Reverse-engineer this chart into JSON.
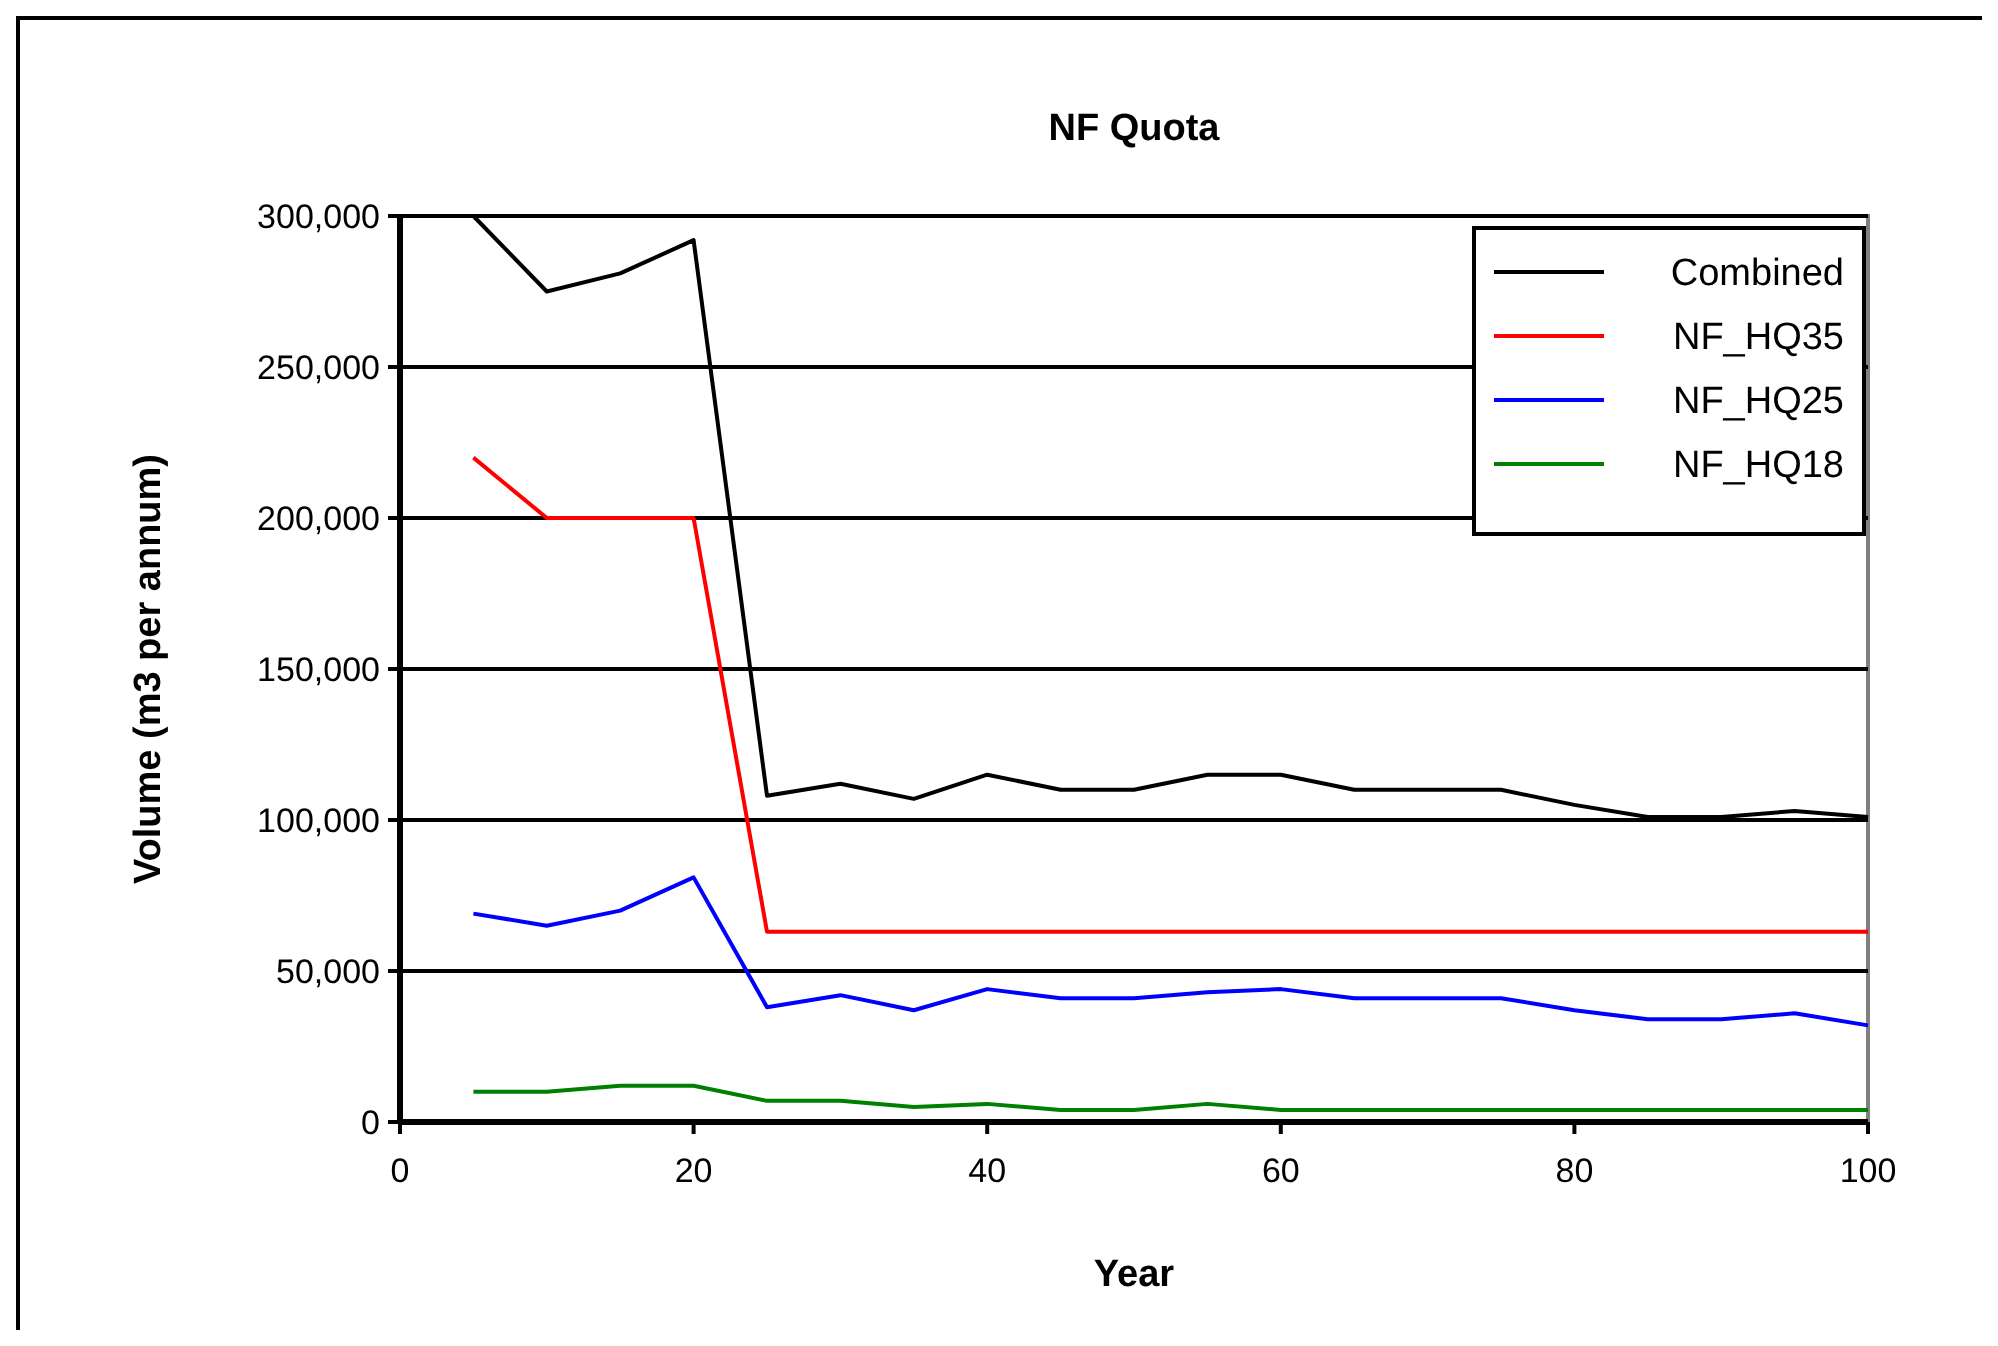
{
  "chart_data": {
    "type": "line",
    "title": "NF Quota",
    "xlabel": "Year",
    "ylabel": "Volume (m3 per annum)",
    "x": [
      5,
      10,
      15,
      20,
      25,
      30,
      35,
      40,
      45,
      50,
      55,
      60,
      65,
      70,
      75,
      80,
      85,
      90,
      95,
      100
    ],
    "xlim": [
      0,
      100
    ],
    "xticks": [
      0,
      20,
      40,
      60,
      80,
      100
    ],
    "ylim": [
      0,
      300000
    ],
    "yticks": [
      {
        "value": 0,
        "label": "0"
      },
      {
        "value": 50000,
        "label": "50,000"
      },
      {
        "value": 100000,
        "label": "100,000"
      },
      {
        "value": 150000,
        "label": "150,000"
      },
      {
        "value": 200000,
        "label": "200,000"
      },
      {
        "value": 250000,
        "label": "250,000"
      },
      {
        "value": 300000,
        "label": "300,000"
      }
    ],
    "grid": "y",
    "legend": "top right",
    "marker": "none",
    "series": [
      {
        "name": "Combined",
        "color": "#000000",
        "values": [
          300000,
          275000,
          281000,
          292000,
          108000,
          112000,
          107000,
          115000,
          110000,
          110000,
          115000,
          115000,
          110000,
          110000,
          110000,
          105000,
          101000,
          101000,
          103000,
          101000
        ]
      },
      {
        "name": "NF_HQ35",
        "color": "#ff0000",
        "values": [
          220000,
          200000,
          200000,
          200000,
          63000,
          63000,
          63000,
          63000,
          63000,
          63000,
          63000,
          63000,
          63000,
          63000,
          63000,
          63000,
          63000,
          63000,
          63000,
          63000
        ]
      },
      {
        "name": "NF_HQ25",
        "color": "#0000ff",
        "values": [
          69000,
          65000,
          70000,
          81000,
          38000,
          42000,
          37000,
          44000,
          41000,
          41000,
          43000,
          44000,
          41000,
          41000,
          41000,
          37000,
          34000,
          34000,
          36000,
          32000
        ]
      },
      {
        "name": "NF_HQ18",
        "color": "#008000",
        "values": [
          10000,
          10000,
          12000,
          12000,
          7000,
          7000,
          5000,
          6000,
          4000,
          4000,
          6000,
          4000,
          4000,
          4000,
          4000,
          4000,
          4000,
          4000,
          4000,
          4000
        ]
      }
    ]
  }
}
